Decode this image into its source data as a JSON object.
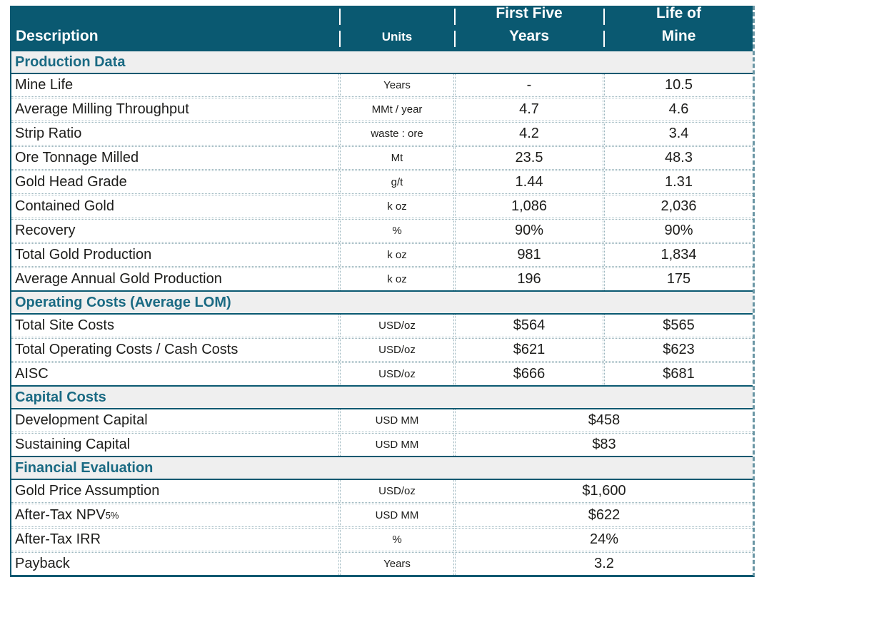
{
  "header": {
    "description": "Description",
    "units": "Units",
    "first_five_line1": "First Five",
    "first_five_line2": "Years",
    "life_of_mine_line1": "Life of",
    "life_of_mine_line2": "Mine"
  },
  "sections": [
    {
      "title": "Production Data",
      "rows": [
        {
          "desc": "Mine Life",
          "units": "Years",
          "first_five": "-",
          "life_of_mine": "10.5"
        },
        {
          "desc": "Average Milling Throughput",
          "units": "MMt / year",
          "first_five": "4.7",
          "life_of_mine": "4.6"
        },
        {
          "desc": "Strip Ratio",
          "units": "waste : ore",
          "first_five": "4.2",
          "life_of_mine": "3.4"
        },
        {
          "desc": "Ore Tonnage Milled",
          "units": "Mt",
          "first_five": "23.5",
          "life_of_mine": "48.3"
        },
        {
          "desc": "Gold Head Grade",
          "units": "g/t",
          "first_five": "1.44",
          "life_of_mine": "1.31"
        },
        {
          "desc": "Contained Gold",
          "units": "k oz",
          "first_five": "1,086",
          "life_of_mine": "2,036"
        },
        {
          "desc": "Recovery",
          "units": "%",
          "first_five": "90%",
          "life_of_mine": "90%"
        },
        {
          "desc": "Total Gold Production",
          "units": "k oz",
          "first_five": "981",
          "life_of_mine": "1,834"
        },
        {
          "desc": "Average Annual Gold Production",
          "units": "k oz",
          "first_five": "196",
          "life_of_mine": "175"
        }
      ]
    },
    {
      "title": "Operating Costs (Average LOM)",
      "rows": [
        {
          "desc": "Total Site Costs",
          "units": "USD/oz",
          "first_five": "$564",
          "life_of_mine": "$565"
        },
        {
          "desc": "Total Operating Costs / Cash Costs",
          "units": "USD/oz",
          "first_five": "$621",
          "life_of_mine": "$623"
        },
        {
          "desc": "AISC",
          "units": "USD/oz",
          "first_five": "$666",
          "life_of_mine": "$681"
        }
      ]
    },
    {
      "title": "Capital Costs",
      "rows": [
        {
          "desc": "Development Capital",
          "units": "USD MM",
          "value": "$458"
        },
        {
          "desc": "Sustaining Capital",
          "units": "USD MM",
          "value": "$83"
        }
      ]
    },
    {
      "title": "Financial Evaluation",
      "rows": [
        {
          "desc": "Gold Price Assumption",
          "units": "USD/oz",
          "value": "$1,600"
        },
        {
          "desc": "After-Tax NPV",
          "desc_sub": "5%",
          "units": "USD MM",
          "value": "$622"
        },
        {
          "desc": "After-Tax IRR",
          "units": "%",
          "value": "24%"
        },
        {
          "desc": "Payback",
          "units": "Years",
          "value": "3.2"
        }
      ]
    }
  ],
  "colors": {
    "header_bg": "#0A5971",
    "header_text": "#FFFFFF",
    "section_text": "#1A6A83",
    "section_bg": "#EFEFEF",
    "border": "#0A5971",
    "divider": "#9AB5BD",
    "body_text": "#1D1D1B"
  }
}
